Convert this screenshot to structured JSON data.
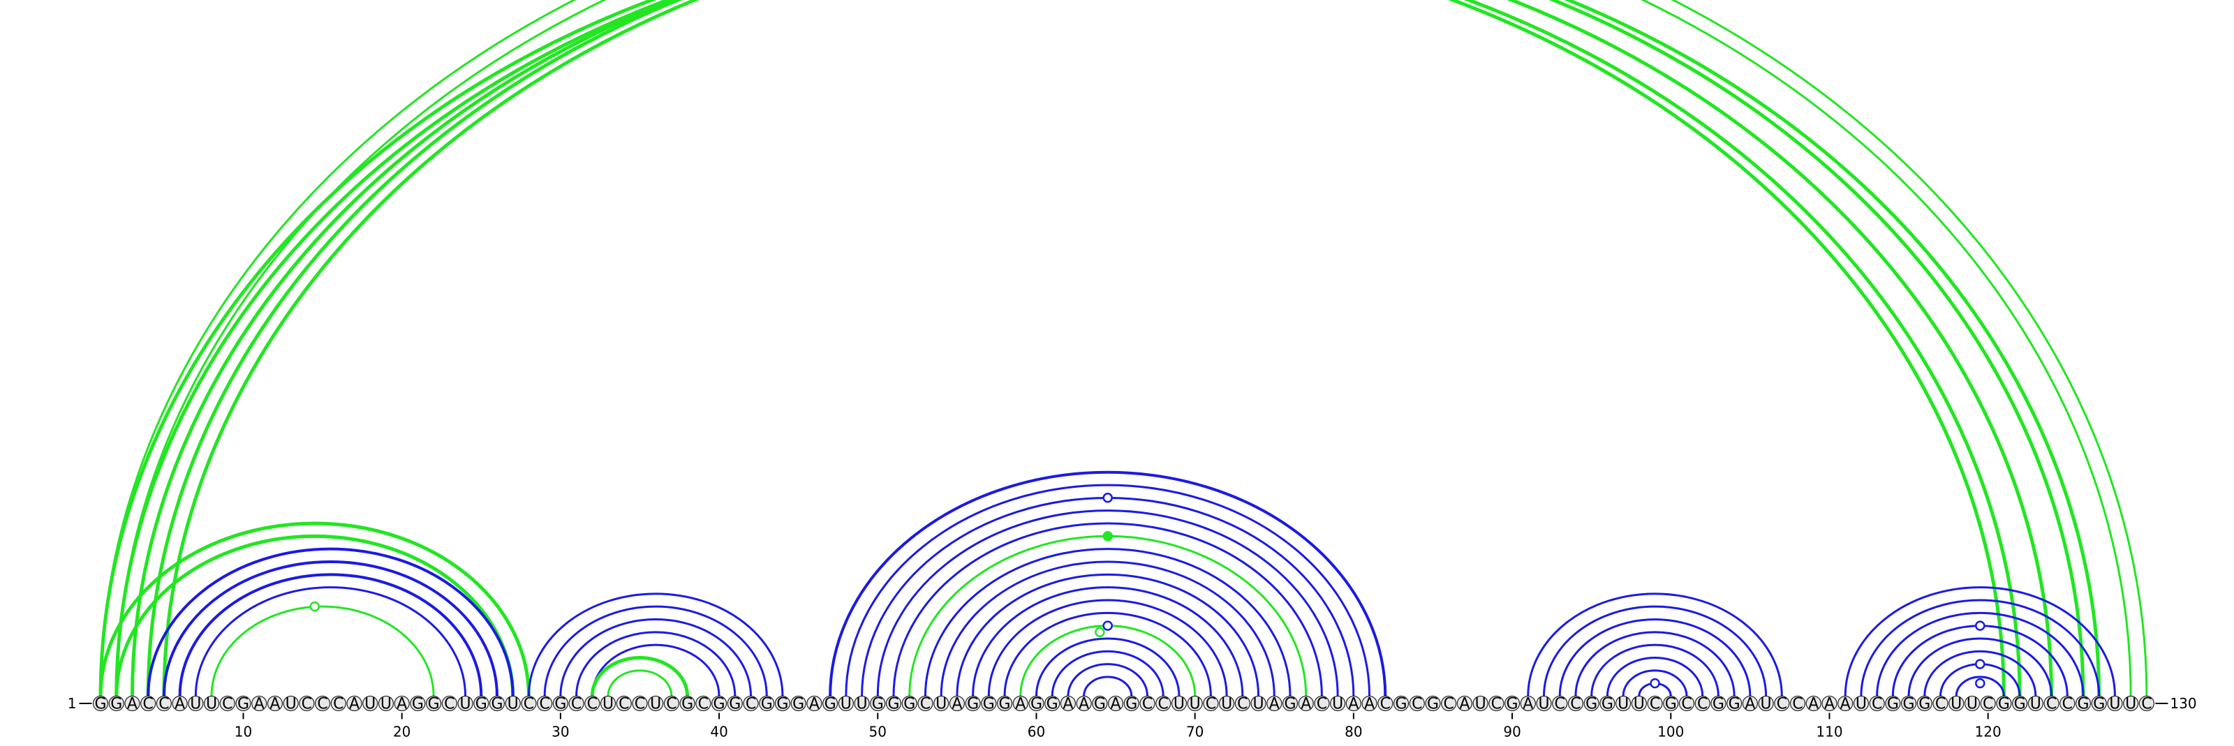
{
  "sequence": "GGACCAUUCGAAUCCCAUUAGGCUGGUCCGCCUCCUCGCGGCGGGAGUUGGGCUAGGGAGGAAGAGCCUUCUCUAGACUAACGCGCAUCGAUCCGGUUCGCCGGAUCCAAAUCGGGCUUCGGUCCGGUUC",
  "labels": {
    "start": "1",
    "end": "130",
    "ticks": [
      "10",
      "20",
      "30",
      "40",
      "50",
      "60",
      "70",
      "80",
      "90",
      "100",
      "110",
      "120"
    ]
  },
  "colors": {
    "blue": "#1a1ae6",
    "green": "#22e622"
  },
  "arcs": [
    {
      "i": 1,
      "j": 121,
      "color": "green",
      "w": 5
    },
    {
      "i": 2,
      "j": 122,
      "color": "green",
      "w": 5
    },
    {
      "i": 3,
      "j": 124,
      "color": "green",
      "w": 5
    },
    {
      "i": 4,
      "j": 126,
      "color": "green",
      "w": 5
    },
    {
      "i": 5,
      "j": 127,
      "color": "green",
      "w": 5
    },
    {
      "i": 1,
      "j": 130,
      "color": "green",
      "w": 3
    },
    {
      "i": 2,
      "j": 129,
      "color": "green",
      "w": 3
    },
    {
      "i": 1,
      "j": 28,
      "color": "green",
      "w": 5
    },
    {
      "i": 2,
      "j": 27,
      "color": "green",
      "w": 5
    },
    {
      "i": 4,
      "j": 27,
      "color": "blue",
      "w": 4
    },
    {
      "i": 5,
      "j": 26,
      "color": "blue",
      "w": 4
    },
    {
      "i": 6,
      "j": 25,
      "color": "blue",
      "w": 4
    },
    {
      "i": 7,
      "j": 24,
      "color": "blue",
      "w": 3
    },
    {
      "i": 8,
      "j": 22,
      "color": "green",
      "w": 3
    },
    {
      "i": 28,
      "j": 44,
      "color": "blue",
      "w": 3
    },
    {
      "i": 29,
      "j": 43,
      "color": "blue",
      "w": 3
    },
    {
      "i": 30,
      "j": 42,
      "color": "blue",
      "w": 3
    },
    {
      "i": 31,
      "j": 41,
      "color": "blue",
      "w": 3
    },
    {
      "i": 32,
      "j": 40,
      "color": "blue",
      "w": 3
    },
    {
      "i": 32,
      "j": 38,
      "color": "green",
      "w": 5
    },
    {
      "i": 33,
      "j": 37,
      "color": "green",
      "w": 3
    },
    {
      "i": 47,
      "j": 82,
      "color": "blue",
      "w": 4
    },
    {
      "i": 48,
      "j": 81,
      "color": "blue",
      "w": 3
    },
    {
      "i": 49,
      "j": 80,
      "color": "blue",
      "w": 3
    },
    {
      "i": 50,
      "j": 79,
      "color": "blue",
      "w": 3
    },
    {
      "i": 51,
      "j": 78,
      "color": "blue",
      "w": 3
    },
    {
      "i": 52,
      "j": 77,
      "color": "green",
      "w": 3
    },
    {
      "i": 53,
      "j": 76,
      "color": "blue",
      "w": 3
    },
    {
      "i": 54,
      "j": 75,
      "color": "blue",
      "w": 3
    },
    {
      "i": 55,
      "j": 74,
      "color": "blue",
      "w": 3
    },
    {
      "i": 56,
      "j": 73,
      "color": "blue",
      "w": 3
    },
    {
      "i": 57,
      "j": 72,
      "color": "blue",
      "w": 3
    },
    {
      "i": 58,
      "j": 71,
      "color": "blue",
      "w": 3
    },
    {
      "i": 59,
      "j": 70,
      "color": "green",
      "w": 3
    },
    {
      "i": 60,
      "j": 69,
      "color": "blue",
      "w": 3
    },
    {
      "i": 61,
      "j": 68,
      "color": "blue",
      "w": 3
    },
    {
      "i": 62,
      "j": 67,
      "color": "blue",
      "w": 3
    },
    {
      "i": 63,
      "j": 66,
      "color": "blue",
      "w": 3
    },
    {
      "i": 91,
      "j": 107,
      "color": "blue",
      "w": 3
    },
    {
      "i": 92,
      "j": 106,
      "color": "blue",
      "w": 3
    },
    {
      "i": 93,
      "j": 105,
      "color": "blue",
      "w": 3
    },
    {
      "i": 94,
      "j": 104,
      "color": "blue",
      "w": 3
    },
    {
      "i": 95,
      "j": 103,
      "color": "blue",
      "w": 3
    },
    {
      "i": 96,
      "j": 102,
      "color": "blue",
      "w": 3
    },
    {
      "i": 97,
      "j": 101,
      "color": "blue",
      "w": 3
    },
    {
      "i": 98,
      "j": 100,
      "color": "blue",
      "w": 3
    },
    {
      "i": 111,
      "j": 128,
      "color": "blue",
      "w": 3
    },
    {
      "i": 112,
      "j": 127,
      "color": "blue",
      "w": 3
    },
    {
      "i": 113,
      "j": 126,
      "color": "blue",
      "w": 3
    },
    {
      "i": 114,
      "j": 125,
      "color": "blue",
      "w": 3
    },
    {
      "i": 115,
      "j": 124,
      "color": "blue",
      "w": 3
    },
    {
      "i": 116,
      "j": 123,
      "color": "blue",
      "w": 3
    },
    {
      "i": 117,
      "j": 122,
      "color": "blue",
      "w": 3
    },
    {
      "i": 118,
      "j": 121,
      "color": "blue",
      "w": 3
    }
  ],
  "markers": [
    {
      "center": 65.5,
      "span": 130,
      "color": "green",
      "filled": false
    },
    {
      "center": 14.5,
      "span": 14,
      "color": "green",
      "filled": false
    },
    {
      "center": 64.5,
      "span": 31,
      "color": "blue",
      "filled": false
    },
    {
      "center": 64.5,
      "span": 25,
      "color": "green",
      "filled": true
    },
    {
      "center": 64.5,
      "span": 11,
      "color": "blue",
      "filled": false
    },
    {
      "center": 64.0,
      "span": 10,
      "color": "green",
      "filled": false
    },
    {
      "center": 99.0,
      "span": 2,
      "color": "blue",
      "filled": false
    },
    {
      "center": 119.5,
      "span": 11,
      "color": "blue",
      "filled": false
    },
    {
      "center": 119.5,
      "span": 5,
      "color": "blue",
      "filled": false
    },
    {
      "center": 119.5,
      "span": 2,
      "color": "blue",
      "filled": false
    }
  ]
}
